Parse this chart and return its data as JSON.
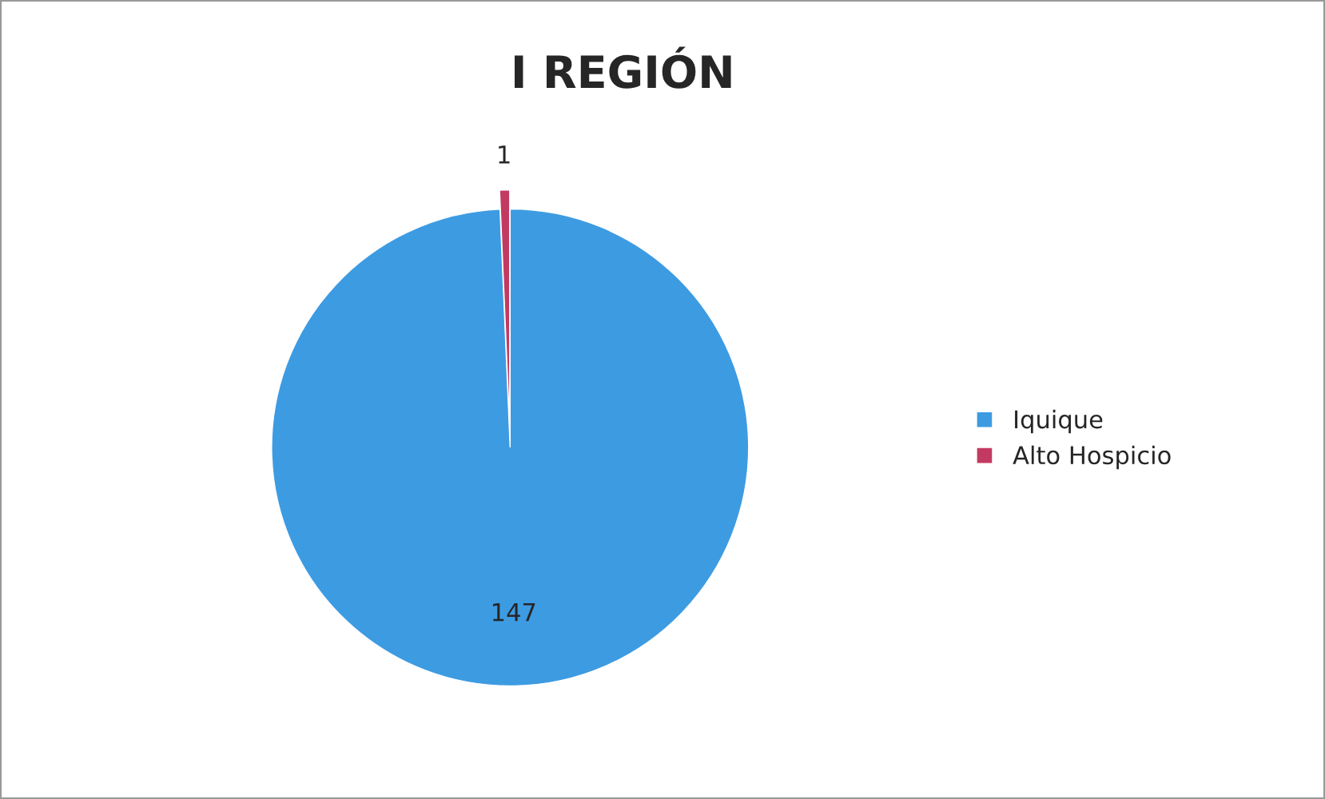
{
  "chart_data": {
    "type": "pie",
    "title": "I REGIÓN",
    "categories": [
      "Iquique",
      "Alto Hospicio"
    ],
    "values": [
      147,
      1
    ],
    "colors": [
      "#3d9be2",
      "#c23a62"
    ],
    "data_labels": true,
    "legend": "right"
  }
}
